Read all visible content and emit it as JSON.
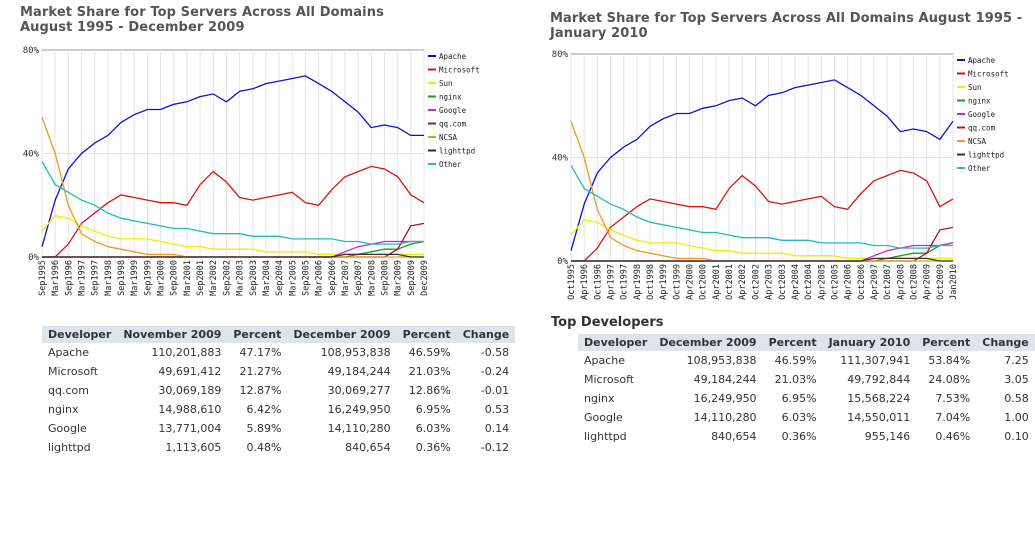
{
  "left": {
    "title": "Market Share for Top Servers Across All Domains\nAugust 1995 - December 2009",
    "table": {
      "headers": [
        "Developer",
        "November 2009",
        "Percent",
        "December 2009",
        "Percent",
        "Change"
      ],
      "rows": [
        [
          "Apache",
          "110,201,883",
          "47.17%",
          "108,953,838",
          "46.59%",
          "-0.58"
        ],
        [
          "Microsoft",
          "49,691,412",
          "21.27%",
          "49,184,244",
          "21.03%",
          "-0.24"
        ],
        [
          "qq.com",
          "30,069,189",
          "12.87%",
          "30,069,277",
          "12.86%",
          "-0.01"
        ],
        [
          "nginx",
          "14,988,610",
          "6.42%",
          "16,249,950",
          "6.95%",
          "0.53"
        ],
        [
          "Google",
          "13,771,004",
          "5.89%",
          "14,110,280",
          "6.03%",
          "0.14"
        ],
        [
          "lighttpd",
          "1,113,605",
          "0.48%",
          "840,654",
          "0.36%",
          "-0.12"
        ]
      ]
    }
  },
  "right": {
    "title": "Market Share for Top Servers Across All Domains August 1995 -\nJanuary 2010",
    "subheading": "Top Developers",
    "table": {
      "headers": [
        "Developer",
        "December 2009",
        "Percent",
        "January 2010",
        "Percent",
        "Change"
      ],
      "rows": [
        [
          "Apache",
          "108,953,838",
          "46.59%",
          "111,307,941",
          "53.84%",
          "7.25"
        ],
        [
          "Microsoft",
          "49,184,244",
          "21.03%",
          "49,792,844",
          "24.08%",
          "3.05"
        ],
        [
          "nginx",
          "16,249,950",
          "6.95%",
          "15,568,224",
          "7.53%",
          "0.58"
        ],
        [
          "Google",
          "14,110,280",
          "6.03%",
          "14,550,011",
          "7.04%",
          "1.00"
        ],
        [
          "lighttpd",
          "840,654",
          "0.36%",
          "955,146",
          "0.46%",
          "0.10"
        ]
      ]
    }
  },
  "chart_data": [
    {
      "type": "line",
      "title": "Market Share for Top Servers Across All Domains August 1995 - December 2009",
      "ylim": [
        0,
        80
      ],
      "yticks": [
        "0%",
        "40%",
        "80%"
      ],
      "grid": true,
      "legend_position": "right",
      "x": [
        "Sep1995",
        "Mar1996",
        "Sep1996",
        "Mar1997",
        "Sep1997",
        "Mar1998",
        "Sep1998",
        "Mar1999",
        "Sep1999",
        "Mar2000",
        "Sep2000",
        "Mar2001",
        "Sep2001",
        "Mar2002",
        "Sep2002",
        "Mar2003",
        "Sep2003",
        "Mar2004",
        "Sep2004",
        "Mar2005",
        "Sep2005",
        "Mar2006",
        "Sep2006",
        "Mar2007",
        "Sep2007",
        "Mar2008",
        "Sep2008",
        "Mar2009",
        "Sep2009",
        "Dec2009"
      ],
      "series": [
        {
          "name": "Apache",
          "color": "#1010cc",
          "values": [
            4,
            22,
            34,
            40,
            44,
            47,
            52,
            55,
            57,
            57,
            59,
            60,
            62,
            63,
            60,
            64,
            65,
            67,
            68,
            69,
            70,
            67,
            64,
            60,
            56,
            50,
            51,
            50,
            47,
            47
          ]
        },
        {
          "name": "Microsoft",
          "color": "#dd1111",
          "values": [
            0,
            0,
            5,
            13,
            17,
            21,
            24,
            23,
            22,
            21,
            21,
            20,
            28,
            33,
            29,
            23,
            22,
            23,
            24,
            25,
            21,
            20,
            26,
            31,
            33,
            35,
            34,
            31,
            24,
            21
          ]
        },
        {
          "name": "Sun",
          "color": "#eeee00",
          "values": [
            10,
            16,
            15,
            12,
            10,
            8,
            7,
            7,
            7,
            6,
            5,
            4,
            4,
            3,
            3,
            3,
            3,
            2,
            2,
            2,
            2,
            1,
            1,
            1,
            1,
            1,
            1,
            1,
            1,
            1
          ]
        },
        {
          "name": "nginx",
          "color": "#229922",
          "values": [
            0,
            0,
            0,
            0,
            0,
            0,
            0,
            0,
            0,
            0,
            0,
            0,
            0,
            0,
            0,
            0,
            0,
            0,
            0,
            0,
            0,
            0,
            0,
            0,
            1,
            2,
            3,
            3,
            5,
            6
          ]
        },
        {
          "name": "Google",
          "color": "#cc22cc",
          "values": [
            0,
            0,
            0,
            0,
            0,
            0,
            0,
            0,
            0,
            0,
            0,
            0,
            0,
            0,
            0,
            0,
            0,
            0,
            0,
            0,
            0,
            0,
            0,
            2,
            4,
            5,
            6,
            6,
            6,
            6
          ]
        },
        {
          "name": "qq.com",
          "color": "#aa1133",
          "values": [
            0,
            0,
            0,
            0,
            0,
            0,
            0,
            0,
            0,
            0,
            0,
            0,
            0,
            0,
            0,
            0,
            0,
            0,
            0,
            0,
            0,
            0,
            0,
            0,
            0,
            0,
            0,
            3,
            12,
            13
          ]
        },
        {
          "name": "NCSA",
          "color": "#ee9922",
          "values": [
            54,
            40,
            20,
            9,
            6,
            4,
            3,
            2,
            1,
            1,
            1,
            0,
            0,
            0,
            0,
            0,
            0,
            0,
            0,
            0,
            0,
            0,
            0,
            0,
            0,
            0,
            0,
            0,
            0,
            0
          ]
        },
        {
          "name": "lighttpd",
          "color": "#333333",
          "values": [
            0,
            0,
            0,
            0,
            0,
            0,
            0,
            0,
            0,
            0,
            0,
            0,
            0,
            0,
            0,
            0,
            0,
            0,
            0,
            0,
            0,
            0,
            0,
            1,
            1,
            1,
            1,
            1,
            0,
            0
          ]
        },
        {
          "name": "Other",
          "color": "#22bbbb",
          "values": [
            37,
            28,
            25,
            22,
            20,
            17,
            15,
            14,
            13,
            12,
            11,
            11,
            10,
            9,
            9,
            9,
            8,
            8,
            8,
            7,
            7,
            7,
            7,
            6,
            6,
            5,
            5,
            5,
            6,
            6
          ]
        }
      ]
    },
    {
      "type": "line",
      "title": "Market Share for Top Servers Across All Domains August 1995 - January 2010",
      "ylim": [
        0,
        80
      ],
      "yticks": [
        "0%",
        "40%",
        "80%"
      ],
      "grid": true,
      "legend_position": "right",
      "x": [
        "Oct1995",
        "Apr1996",
        "Oct1996",
        "Apr1997",
        "Oct1997",
        "Apr1998",
        "Oct1998",
        "Apr1999",
        "Oct1999",
        "Apr2000",
        "Oct2000",
        "Apr2001",
        "Oct2001",
        "Apr2002",
        "Oct2002",
        "Apr2003",
        "Oct2003",
        "Apr2004",
        "Oct2004",
        "Apr2005",
        "Oct2005",
        "Apr2006",
        "Oct2006",
        "Apr2007",
        "Oct2007",
        "Apr2008",
        "Oct2008",
        "Apr2009",
        "Oct2009",
        "Jan2010"
      ],
      "series": [
        {
          "name": "Apache",
          "color": "#1010cc",
          "values": [
            4,
            22,
            34,
            40,
            44,
            47,
            52,
            55,
            57,
            57,
            59,
            60,
            62,
            63,
            60,
            64,
            65,
            67,
            68,
            69,
            70,
            67,
            64,
            60,
            56,
            50,
            51,
            50,
            47,
            54
          ]
        },
        {
          "name": "Microsoft",
          "color": "#dd1111",
          "values": [
            0,
            0,
            5,
            13,
            17,
            21,
            24,
            23,
            22,
            21,
            21,
            20,
            28,
            33,
            29,
            23,
            22,
            23,
            24,
            25,
            21,
            20,
            26,
            31,
            33,
            35,
            34,
            31,
            21,
            24
          ]
        },
        {
          "name": "Sun",
          "color": "#eeee00",
          "values": [
            10,
            16,
            15,
            12,
            10,
            8,
            7,
            7,
            7,
            6,
            5,
            4,
            4,
            3,
            3,
            3,
            3,
            2,
            2,
            2,
            2,
            1,
            1,
            1,
            1,
            1,
            1,
            1,
            1,
            1
          ]
        },
        {
          "name": "nginx",
          "color": "#229922",
          "values": [
            0,
            0,
            0,
            0,
            0,
            0,
            0,
            0,
            0,
            0,
            0,
            0,
            0,
            0,
            0,
            0,
            0,
            0,
            0,
            0,
            0,
            0,
            0,
            0,
            1,
            2,
            3,
            3,
            6,
            7
          ]
        },
        {
          "name": "Google",
          "color": "#cc22cc",
          "values": [
            0,
            0,
            0,
            0,
            0,
            0,
            0,
            0,
            0,
            0,
            0,
            0,
            0,
            0,
            0,
            0,
            0,
            0,
            0,
            0,
            0,
            0,
            0,
            2,
            4,
            5,
            6,
            6,
            6,
            7
          ]
        },
        {
          "name": "qq.com",
          "color": "#aa1133",
          "values": [
            0,
            0,
            0,
            0,
            0,
            0,
            0,
            0,
            0,
            0,
            0,
            0,
            0,
            0,
            0,
            0,
            0,
            0,
            0,
            0,
            0,
            0,
            0,
            0,
            0,
            0,
            0,
            3,
            12,
            13
          ]
        },
        {
          "name": "NCSA",
          "color": "#ee9922",
          "values": [
            54,
            40,
            20,
            9,
            6,
            4,
            3,
            2,
            1,
            1,
            1,
            0,
            0,
            0,
            0,
            0,
            0,
            0,
            0,
            0,
            0,
            0,
            0,
            0,
            0,
            0,
            0,
            0,
            0,
            0
          ]
        },
        {
          "name": "lighttpd",
          "color": "#333333",
          "values": [
            0,
            0,
            0,
            0,
            0,
            0,
            0,
            0,
            0,
            0,
            0,
            0,
            0,
            0,
            0,
            0,
            0,
            0,
            0,
            0,
            0,
            0,
            0,
            1,
            1,
            1,
            1,
            1,
            0,
            0
          ]
        },
        {
          "name": "Other",
          "color": "#22bbbb",
          "values": [
            37,
            28,
            25,
            22,
            20,
            17,
            15,
            14,
            13,
            12,
            11,
            11,
            10,
            9,
            9,
            9,
            8,
            8,
            8,
            7,
            7,
            7,
            7,
            6,
            6,
            5,
            5,
            5,
            6,
            6
          ]
        }
      ]
    }
  ]
}
